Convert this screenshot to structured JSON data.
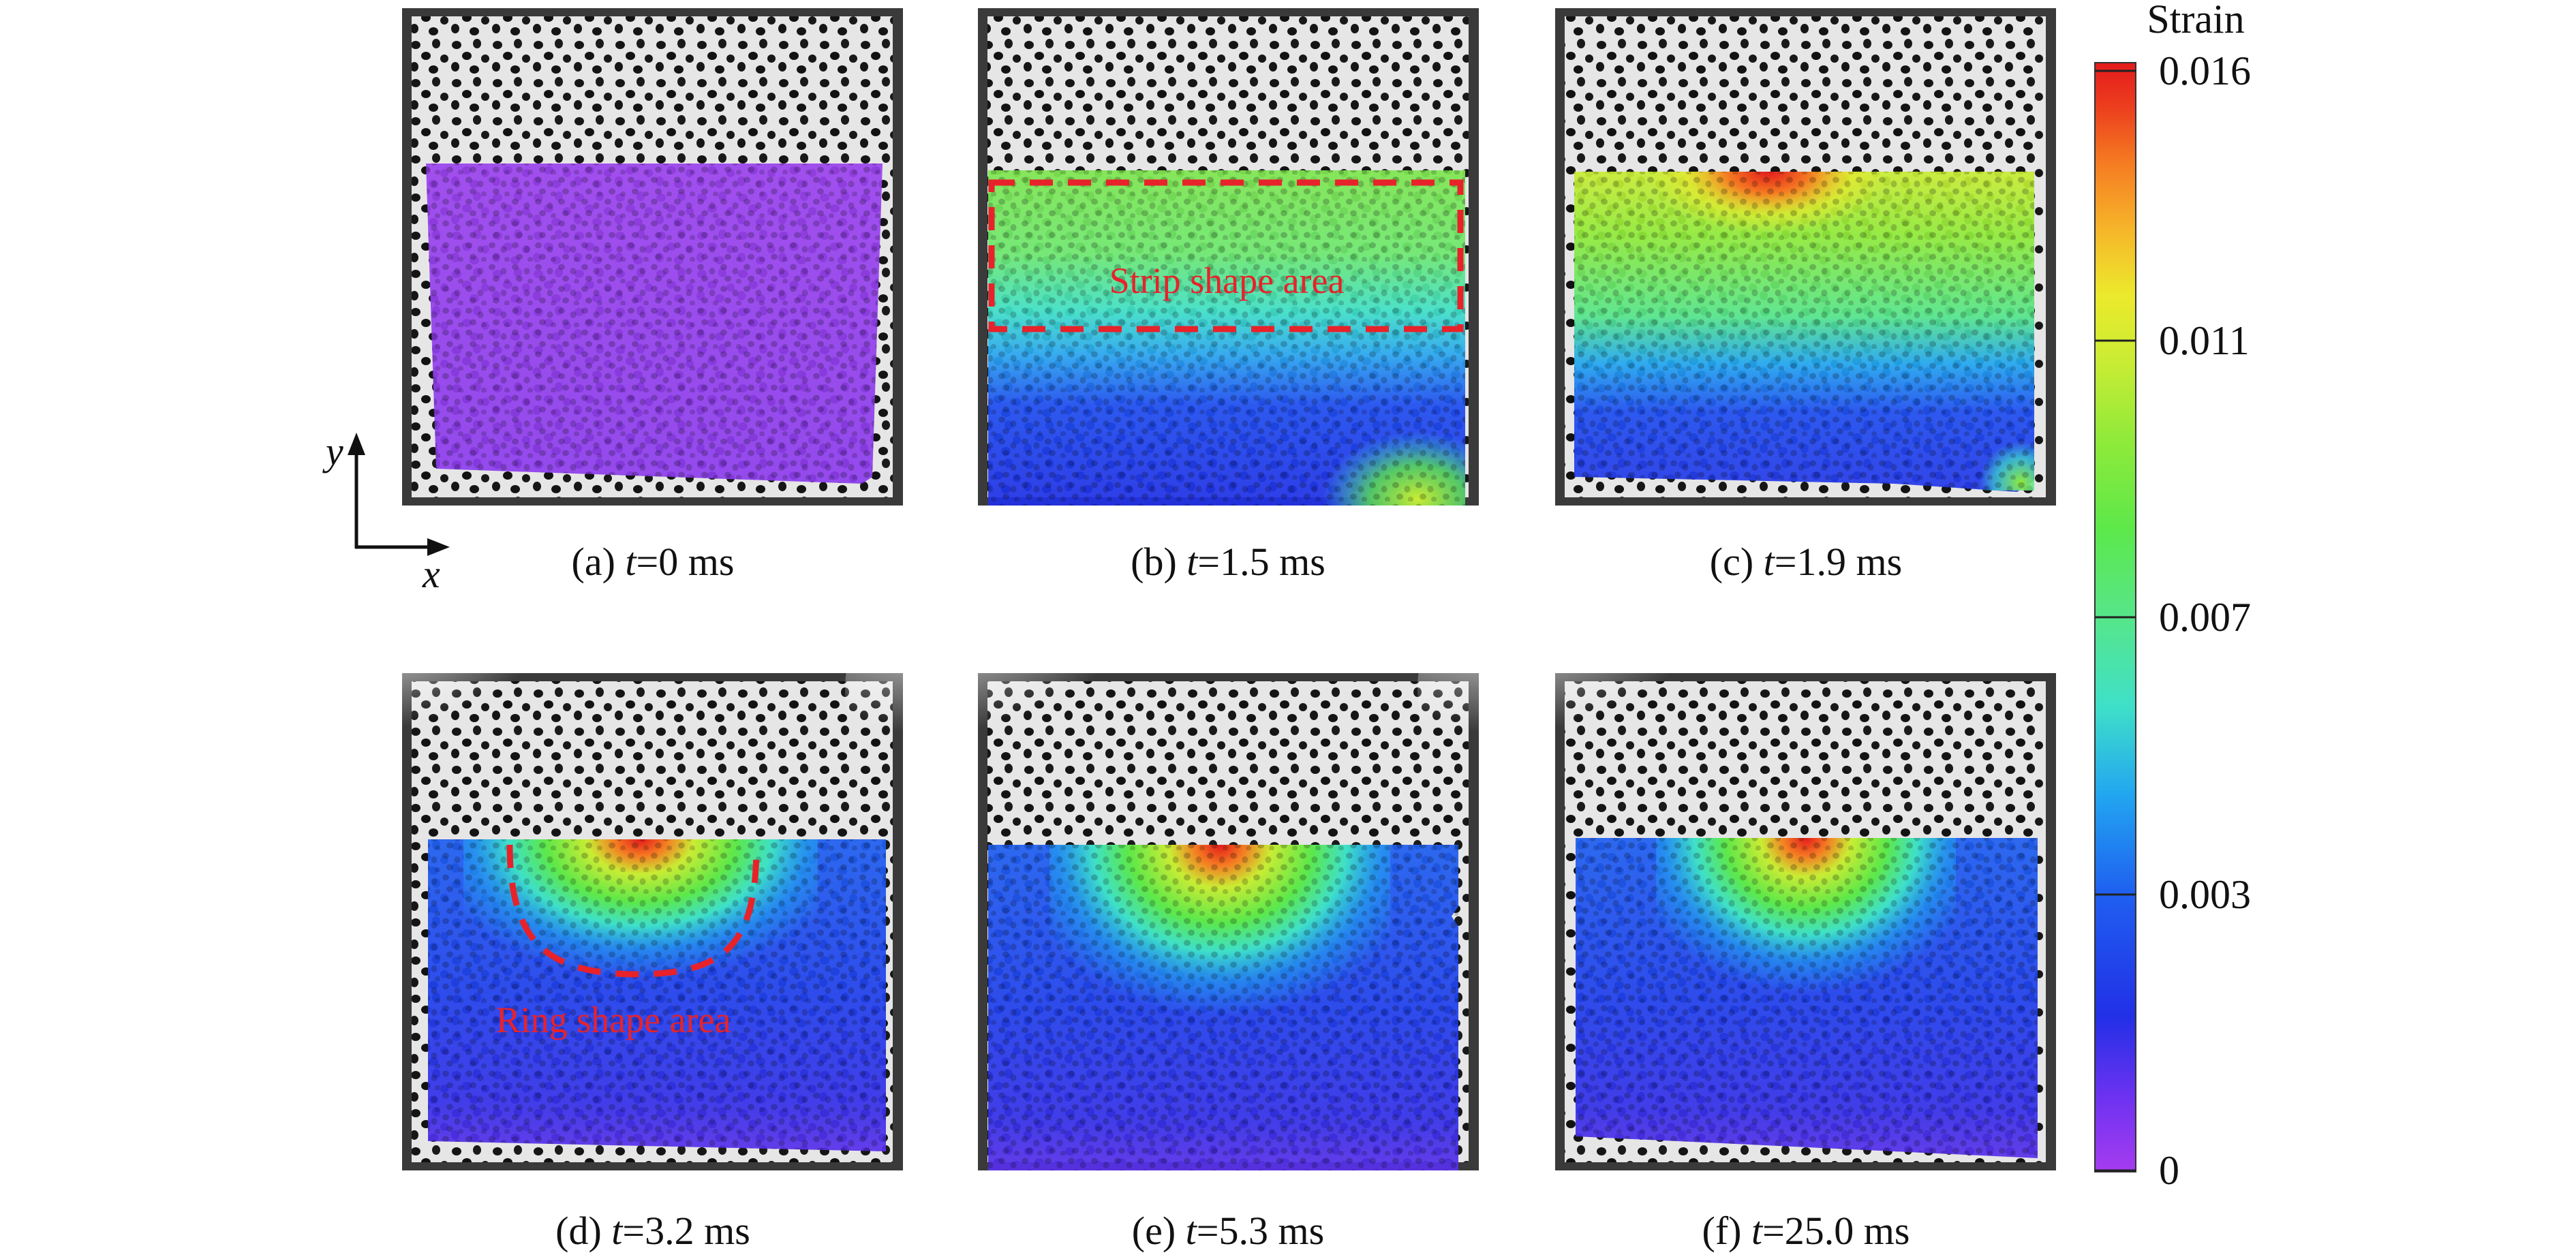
{
  "figure": {
    "axes_indicator": {
      "x_label": "x",
      "y_label": "y"
    },
    "colorbar": {
      "title": "Strain",
      "ticks": [
        "0.016",
        "0.011",
        "0.007",
        "0.003",
        "0"
      ],
      "colors": [
        "#a63cf0",
        "#6a32f0",
        "#2230e6",
        "#1f5ff0",
        "#22a6f0",
        "#3fe0c8",
        "#56e68a",
        "#5de84a",
        "#90ea3a",
        "#c9ec34",
        "#ecea2c",
        "#f6b52a",
        "#f57b22",
        "#ec3e1e",
        "#e31b1b"
      ]
    },
    "panels": [
      {
        "letter": "(a)",
        "t_symbol": "t",
        "value": "=0 ms"
      },
      {
        "letter": "(b)",
        "t_symbol": "t",
        "value": "=1.5 ms",
        "annotation": "Strip shape area"
      },
      {
        "letter": "(c)",
        "t_symbol": "t",
        "value": "=1.9 ms"
      },
      {
        "letter": "(d)",
        "t_symbol": "t",
        "value": "=3.2 ms",
        "annotation": "Ring shape area"
      },
      {
        "letter": "(e)",
        "t_symbol": "t",
        "value": "=5.3 ms"
      },
      {
        "letter": "(f)",
        "t_symbol": "t",
        "value": "=25.0 ms"
      }
    ]
  }
}
